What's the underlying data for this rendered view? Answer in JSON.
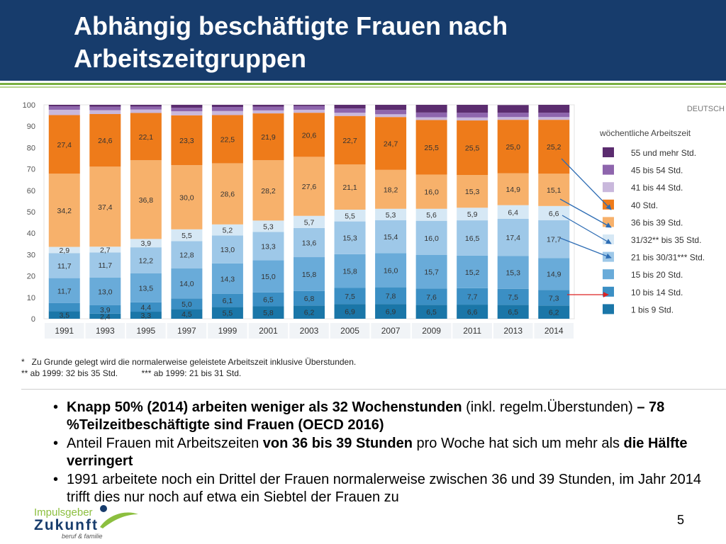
{
  "slide": {
    "title": "Abhängig beschäftigte Frauen nach\nArbeitszeitgruppen",
    "page_number": "5",
    "chart_corner_label": "DEUTSCH",
    "footnote_1": "*   Zu Grunde gelegt wird die normalerweise geleistete Arbeitszeit inklusive Überstunden.",
    "footnote_2": "** ab 1999: 32 bis 35 Std.          *** ab 1999: 21 bis 31 Std.",
    "logo_line1": "Impulsgeber",
    "logo_line2": "Zukunft",
    "logo_line3": "beruf & familie",
    "bullets": [
      {
        "b1": "Knapp 50% (2014) arbeiten weniger als 32 Wochenstunden",
        "t1": " (inkl. regelm.Überstunden) ",
        "b2": "– 78 %Teilzeitbeschäftigte sind Frauen (OECD 2016)"
      },
      {
        "t1": "Anteil Frauen mit  Arbeitszeiten ",
        "b1": "von 36 bis 39 Stunden",
        "t2": " pro Woche hat sich um mehr als ",
        "b2": "die Hälfte verringert"
      },
      {
        "t1": "1991 arbeitete noch ein Drittel der Frauen normalerweise zwischen 36 und 39 Stunden, im Jahr 2014 trifft dies nur noch auf etwa ein Siebtel der Frauen zu"
      }
    ]
  },
  "chart_data": {
    "type": "bar",
    "stacked": true,
    "legend_title": "wöchentliche Arbeitszeit",
    "legend_position": "right",
    "ylim": [
      0,
      100
    ],
    "yticks": [
      0,
      10,
      20,
      30,
      40,
      50,
      60,
      70,
      80,
      90,
      100
    ],
    "categories": [
      "1991",
      "1993",
      "1995",
      "1997",
      "1999",
      "2001",
      "2003",
      "2005",
      "2007",
      "2009",
      "2011",
      "2013",
      "2014"
    ],
    "series": [
      {
        "name": "1 bis 9 Std.",
        "color": "#1a76a8",
        "values": [
          3.5,
          2.4,
          3.3,
          4.5,
          5.5,
          5.8,
          6.2,
          6.9,
          6.9,
          6.5,
          6.6,
          6.5,
          6.2
        ],
        "labels": [
          "3,5",
          "2,4",
          "3,3",
          "4,5",
          "5,5",
          "5,8",
          "6,2",
          "6,9",
          "6,9",
          "6,5",
          "6,6",
          "6,5",
          "6,2"
        ]
      },
      {
        "name": "10 bis 14 Std.",
        "color": "#3b8fc4",
        "values": [
          3.8,
          3.9,
          4.4,
          5.0,
          6.1,
          6.5,
          6.8,
          7.5,
          7.8,
          7.6,
          7.7,
          7.5,
          7.3
        ],
        "labels": [
          "",
          "3,9",
          "4,4",
          "5,0",
          "6,1",
          "6,5",
          "6,8",
          "7,5",
          "7,8",
          "7,6",
          "7,7",
          "7,5",
          "7,3"
        ]
      },
      {
        "name": "15 bis 20 Std.",
        "color": "#69abd9",
        "values": [
          11.7,
          13.0,
          13.5,
          14.0,
          14.3,
          15.0,
          15.8,
          15.8,
          16.0,
          15.7,
          15.2,
          15.3,
          14.9
        ],
        "labels": [
          "11,7",
          "13,0",
          "13,5",
          "14,0",
          "14,3",
          "15,0",
          "15,8",
          "15,8",
          "16,0",
          "15,7",
          "15,2",
          "15,3",
          "14,9"
        ]
      },
      {
        "name": "21 bis 30/31*** Std.",
        "color": "#9ec8e8",
        "values": [
          11.7,
          11.7,
          12.2,
          12.8,
          13.0,
          13.3,
          13.6,
          15.3,
          15.4,
          16.0,
          16.5,
          17.4,
          17.7
        ],
        "labels": [
          "11,7",
          "11,7",
          "12,2",
          "12,8",
          "13,0",
          "13,3",
          "13,6",
          "15,3",
          "15,4",
          "16,0",
          "16,5",
          "17,4",
          "17,7"
        ]
      },
      {
        "name": "31/32** bis 35 Std.",
        "color": "#d6e8f5",
        "values": [
          2.9,
          2.7,
          3.9,
          5.5,
          5.2,
          5.3,
          5.7,
          5.5,
          5.3,
          5.6,
          5.9,
          6.4,
          6.6
        ],
        "labels": [
          "2,9",
          "2,7",
          "3,9",
          "5,5",
          "5,2",
          "5,3",
          "5,7",
          "5,5",
          "5,3",
          "5,6",
          "5,9",
          "6,4",
          "6,6"
        ]
      },
      {
        "name": "36 bis 39 Std.",
        "color": "#f7b16b",
        "values": [
          34.2,
          37.4,
          36.8,
          30.0,
          28.6,
          28.2,
          27.6,
          21.1,
          18.2,
          16.0,
          15.3,
          14.9,
          15.1
        ],
        "labels": [
          "34,2",
          "37,4",
          "36,8",
          "30,0",
          "28,6",
          "28,2",
          "27,6",
          "21,1",
          "18,2",
          "16,0",
          "15,3",
          "14,9",
          "15,1"
        ]
      },
      {
        "name": "40 Std.",
        "color": "#ee7b1a",
        "values": [
          27.4,
          24.6,
          22.1,
          23.3,
          22.5,
          21.9,
          20.6,
          22.7,
          24.7,
          25.5,
          25.5,
          25.0,
          25.2
        ],
        "labels": [
          "27,4",
          "24,6",
          "22,1",
          "23,3",
          "22,5",
          "21,9",
          "20,6",
          "22,7",
          "24,7",
          "25,5",
          "25,5",
          "25,0",
          "25,2"
        ]
      },
      {
        "name": "41 bis 44 Std.",
        "color": "#c9b8dc",
        "values": [
          2.5,
          1.8,
          1.6,
          1.9,
          1.9,
          1.4,
          1.4,
          1.5,
          1.3,
          1.3,
          1.4,
          1.3,
          1.3
        ],
        "labels": []
      },
      {
        "name": "45 bis 54 Std.",
        "color": "#8e65ad",
        "values": [
          1.6,
          1.6,
          1.4,
          1.6,
          1.9,
          1.7,
          1.7,
          2.0,
          2.0,
          2.2,
          2.2,
          2.0,
          2.0
        ],
        "labels": []
      },
      {
        "name": "55 und mehr Std.",
        "color": "#5b2c6f",
        "values": [
          0.7,
          0.9,
          0.8,
          1.4,
          1.0,
          0.9,
          0.6,
          1.7,
          2.4,
          3.6,
          3.7,
          3.6,
          3.7
        ],
        "labels": []
      }
    ]
  }
}
